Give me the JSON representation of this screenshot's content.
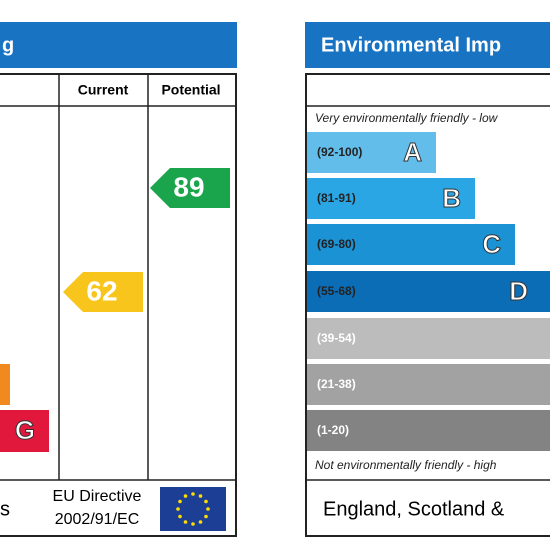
{
  "energy": {
    "title": "g",
    "columns": [
      "Current",
      "Potential"
    ],
    "bands": [
      {
        "letter": ""
      },
      {
        "letter": "G"
      }
    ],
    "current": "62",
    "potential": "89",
    "footer": "s",
    "directive": [
      "EU Directive",
      "2002/91/EC"
    ]
  },
  "environmental": {
    "title": "Environmental Imp",
    "top_note": "Very environmentally friendly - low",
    "bottom_note": "Not environmentally friendly - high",
    "bands": [
      {
        "range": "(92-100)",
        "letter": "A"
      },
      {
        "range": "(81-91)",
        "letter": "B"
      },
      {
        "range": "(69-80)",
        "letter": "C"
      },
      {
        "range": "(55-68)",
        "letter": "D"
      },
      {
        "range": "(39-54)"
      },
      {
        "range": "(21-38)"
      },
      {
        "range": "(1-20)"
      }
    ],
    "footer": "England, Scotland &"
  }
}
